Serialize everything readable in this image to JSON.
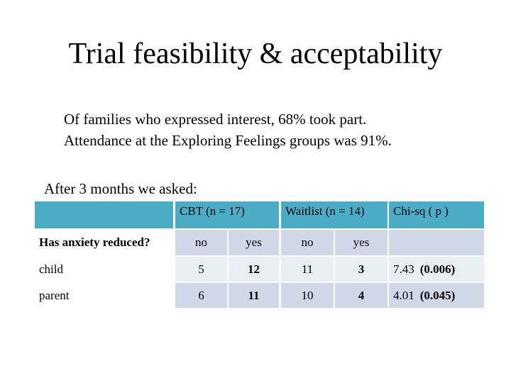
{
  "title": "Trial feasibility & acceptability",
  "body": [
    "Of families who expressed interest, 68% took part.",
    "Attendance at the Exploring Feelings groups was 91%."
  ],
  "intro": "After 3 months we asked:",
  "table": {
    "header": {
      "cbt": "CBT (n = 17)",
      "waitlist": "Waitlist (n = 14)",
      "chisq": "Chi-sq ( p )"
    },
    "subheader": [
      "Has anxiety reduced?",
      "no",
      "yes",
      "no",
      "yes"
    ],
    "rows": [
      {
        "label": "child",
        "cbt": [
          "5",
          "12"
        ],
        "waitlist": [
          "11",
          "3"
        ],
        "chisq": "7.43",
        "p": "(0.006)"
      },
      {
        "label": "parent",
        "cbt": [
          "6",
          "11"
        ],
        "waitlist": [
          "10",
          "4"
        ],
        "chisq": "4.01",
        "p": "(0.045)"
      }
    ]
  }
}
